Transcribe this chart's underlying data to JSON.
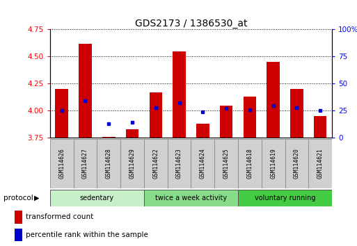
{
  "title": "GDS2173 / 1386530_at",
  "samples": [
    "GSM114626",
    "GSM114627",
    "GSM114628",
    "GSM114629",
    "GSM114622",
    "GSM114623",
    "GSM114624",
    "GSM114625",
    "GSM114618",
    "GSM114619",
    "GSM114620",
    "GSM114621"
  ],
  "groups": [
    {
      "label": "sedentary",
      "indices": [
        0,
        1,
        2,
        3
      ],
      "color": "#c8f0c8"
    },
    {
      "label": "twice a week activity",
      "indices": [
        4,
        5,
        6,
        7
      ],
      "color": "#88dd88"
    },
    {
      "label": "voluntary running",
      "indices": [
        8,
        9,
        10,
        11
      ],
      "color": "#44cc44"
    }
  ],
  "bar_bottom": 3.75,
  "transformed_count": [
    4.2,
    4.62,
    3.76,
    3.83,
    4.17,
    4.55,
    3.88,
    4.05,
    4.13,
    4.45,
    4.2,
    3.95
  ],
  "percentile_rank": [
    25,
    34,
    13,
    14,
    28,
    32,
    24,
    27,
    26,
    30,
    28,
    25
  ],
  "ylim_left": [
    3.75,
    4.75
  ],
  "ylim_right": [
    0,
    100
  ],
  "yticks_left": [
    3.75,
    4.0,
    4.25,
    4.5,
    4.75
  ],
  "yticks_right": [
    0,
    25,
    50,
    75,
    100
  ],
  "bar_color": "#cc0000",
  "dot_color": "#0000cc",
  "bar_width": 0.55,
  "title_fontsize": 10,
  "tick_fontsize": 7.5,
  "label_fontsize": 6.5,
  "group_fontsize": 7.5,
  "legend_fontsize": 7.5,
  "protocol_label": "protocol"
}
